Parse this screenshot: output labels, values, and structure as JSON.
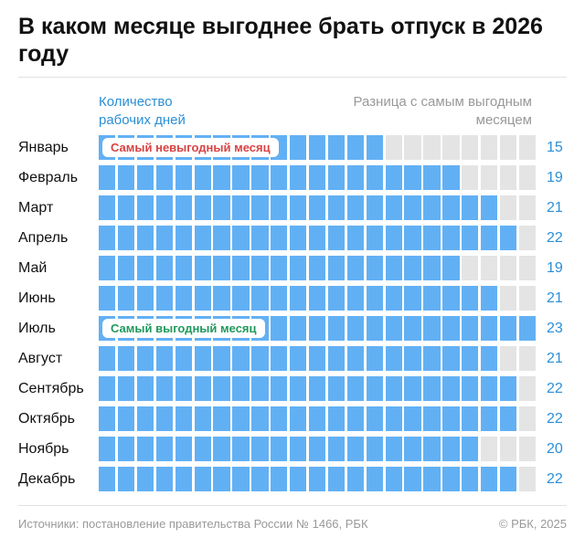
{
  "title": "В каком месяце выгоднее брать отпуск в 2026 году",
  "legend_left": "Количество рабочих дней",
  "legend_right": "Разница с самым выгодным месяцем",
  "colors": {
    "filled": "#62b0f4",
    "empty": "#e4e4e4",
    "value": "#2b8fd6",
    "worst": "#d94343",
    "best": "#1f9a5c"
  },
  "chart_data": {
    "type": "bar",
    "categories": [
      "Январь",
      "Февраль",
      "Март",
      "Апрель",
      "Май",
      "Июнь",
      "Июль",
      "Август",
      "Сентябрь",
      "Октябрь",
      "Ноябрь",
      "Декабрь"
    ],
    "values": [
      15,
      19,
      21,
      22,
      19,
      21,
      23,
      21,
      22,
      22,
      20,
      22
    ],
    "max": 23,
    "annotations": [
      {
        "category": "Январь",
        "text": "Самый невыгодный месяц"
      },
      {
        "category": "Июль",
        "text": "Самый выгодный месяц"
      }
    ]
  },
  "footer": {
    "source": "Источники: постановление правительства России № 1466, РБК",
    "copyright": "© РБК, 2025"
  }
}
